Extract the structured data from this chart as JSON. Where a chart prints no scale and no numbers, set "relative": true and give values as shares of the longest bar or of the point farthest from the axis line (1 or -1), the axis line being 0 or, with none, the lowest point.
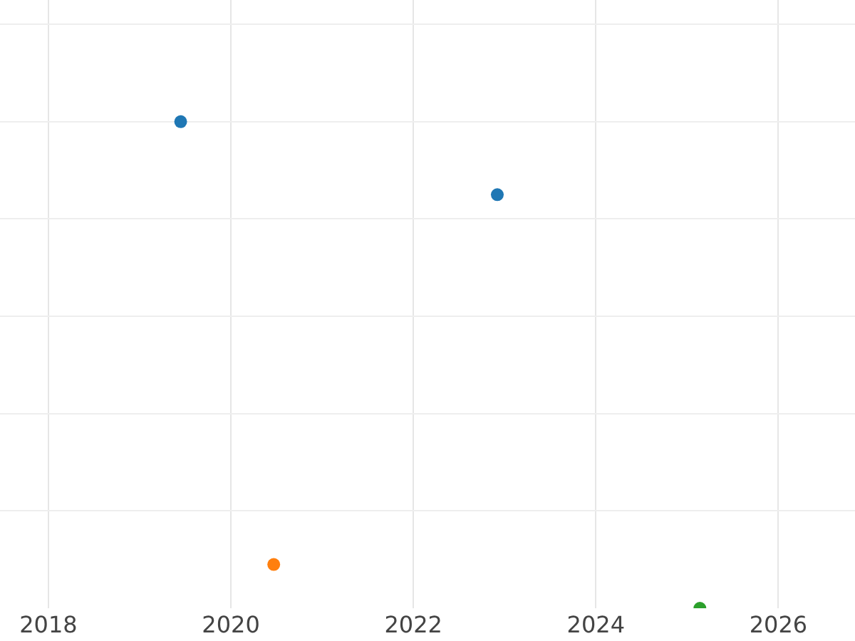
{
  "chart_data": {
    "type": "scatter",
    "relative": true,
    "x": [
      2019.45,
      2022.92,
      2020.47,
      2025.14
    ],
    "values": [
      1,
      0.85,
      0.09,
      0
    ],
    "colors": [
      "#1f77b4",
      "#1f77b4",
      "#ff7f0e",
      "#2ca02c"
    ],
    "xlim": [
      2017.47,
      2026.84
    ],
    "xticks": [
      2018,
      2020,
      2022,
      2024,
      2026
    ],
    "grid": true,
    "marker": "circle"
  }
}
